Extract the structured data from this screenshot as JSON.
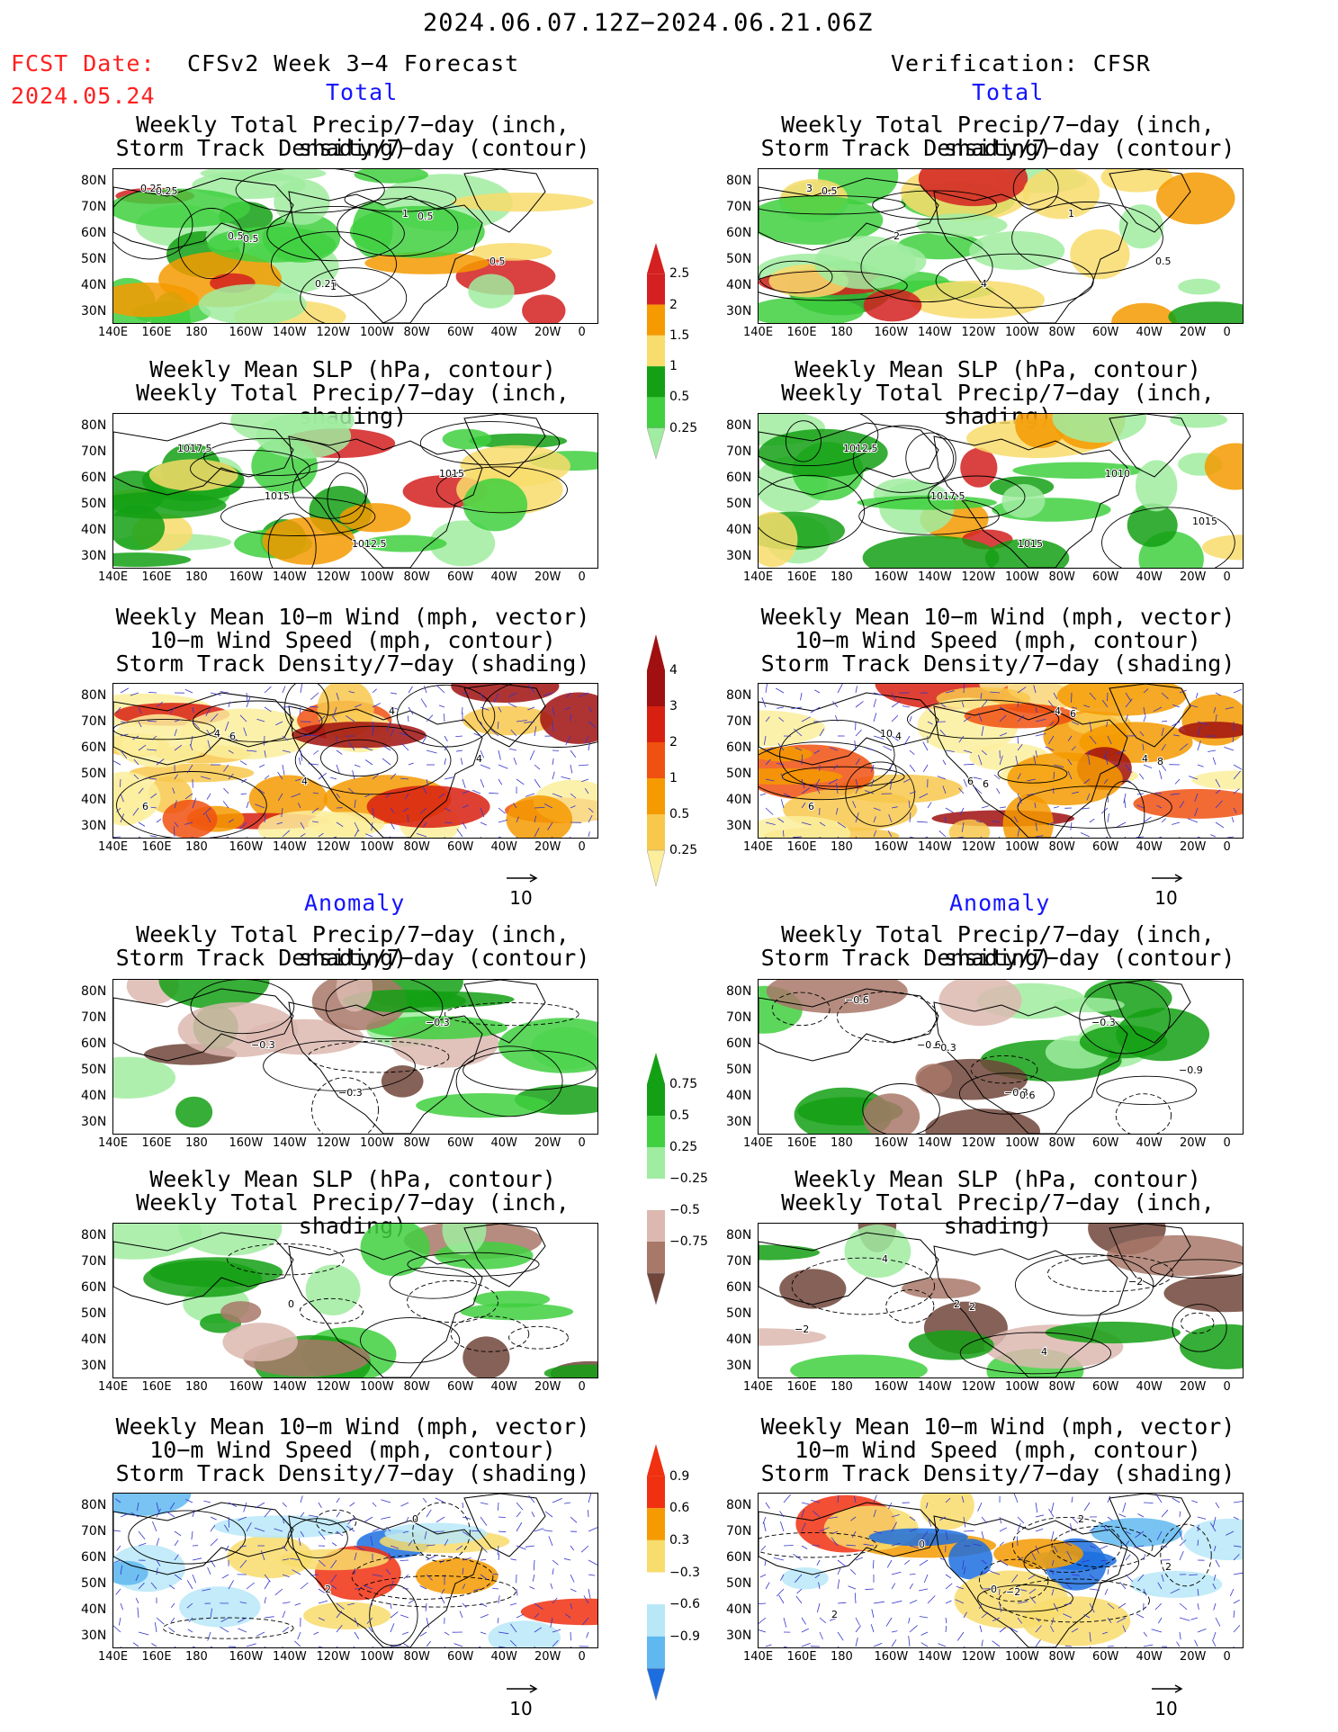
{
  "header": {
    "date_range": "2024.06.07.12Z−2024.06.21.06Z",
    "fcst_label": "FCST Date:",
    "fcst_date": "2024.05.24",
    "left_title": "CFSv2 Week 3−4 Forecast",
    "right_title": "Verification: CFSR"
  },
  "sections": [
    {
      "label": "Total"
    },
    {
      "label": "Anomaly"
    }
  ],
  "panel_titles": {
    "precip_storm": [
      "Weekly Total Precip/7−day (inch, shading)",
      "Storm Track Density/7−day (contour)"
    ],
    "slp_precip": [
      "Weekly Mean SLP (hPa, contour)",
      "Weekly Total Precip/7−day (inch, shading)"
    ],
    "wind_storm": [
      "Weekly Mean 10−m Wind (mph, vector)",
      "10−m Wind Speed (mph, contour)",
      "Storm Track Density/7−day (shading)"
    ]
  },
  "axes": {
    "lat_ticks": [
      "80N",
      "70N",
      "60N",
      "50N",
      "40N",
      "30N"
    ],
    "lon_ticks": [
      "140E",
      "160E",
      "180",
      "160W",
      "140W",
      "120W",
      "100W",
      "80W",
      "60W",
      "40W",
      "20W",
      "0"
    ]
  },
  "vector_ref": "10",
  "colorbars": {
    "total_precip": {
      "labels": [
        "2.5",
        "2",
        "1.5",
        "1",
        "0.5",
        "0.25"
      ],
      "colors": [
        "#d42020",
        "#f59a00",
        "#f8dc6c",
        "#14a014",
        "#40d040",
        "#a0eca0"
      ]
    },
    "total_storm": {
      "labels": [
        "4",
        "3",
        "2",
        "1",
        "0.5",
        "0.25"
      ],
      "colors": [
        "#a01010",
        "#d82010",
        "#f05010",
        "#f59a00",
        "#f8c84c",
        "#fcee9c"
      ]
    },
    "anom_precip": {
      "labels": [
        "0.75",
        "0.5",
        "0.25",
        "−0.25",
        "−0.5",
        "−0.75"
      ],
      "colors": [
        "#14a014",
        "#40d040",
        "#a0eca0",
        "#ffffff",
        "#dcb8b0",
        "#a87868",
        "#70453a"
      ]
    },
    "anom_storm": {
      "labels": [
        "0.9",
        "0.6",
        "0.3",
        "−0.3",
        "−0.6",
        "−0.9"
      ],
      "colors": [
        "#f03010",
        "#f59a00",
        "#f8dc6c",
        "#ffffff",
        "#b8e8f8",
        "#60b8f0",
        "#1c6ee0"
      ]
    }
  },
  "contour_labels": {
    "t_fc_precip": [
      "0.25",
      "0.5",
      "0.25",
      "1",
      "0.5",
      "0.25",
      "0.5",
      "1",
      "0.5"
    ],
    "t_fc_slp": [
      "1017.5",
      "1015",
      "1012.5",
      "1015"
    ],
    "t_fc_wind": [
      "4",
      "4",
      "4",
      "4",
      "6",
      "6"
    ],
    "t_vr_precip": [
      "3",
      "2",
      "4",
      "1",
      "0.5",
      "0.5"
    ],
    "t_vr_slp": [
      "1012.5",
      "1017.5",
      "1015",
      "1010",
      "1015"
    ],
    "t_vr_wind": [
      "10",
      "6",
      "4",
      "4",
      "6",
      "4",
      "6",
      "6",
      "8"
    ],
    "a_fc_precip": [
      "−0.3",
      "−0.3",
      "−0.3"
    ],
    "a_fc_slp": [
      "0"
    ],
    "a_fc_wind": [
      "2",
      "0"
    ],
    "a_vr_precip": [
      "−0.6",
      "−0.3",
      "−0.3",
      "−0.9",
      "−0.6",
      "−0.3",
      "0.6"
    ],
    "a_vr_slp": [
      "2",
      "4",
      "−2",
      "−2",
      "4",
      "2"
    ],
    "a_vr_wind": [
      "0",
      "2",
      "2",
      "2",
      "0",
      "−2"
    ]
  }
}
